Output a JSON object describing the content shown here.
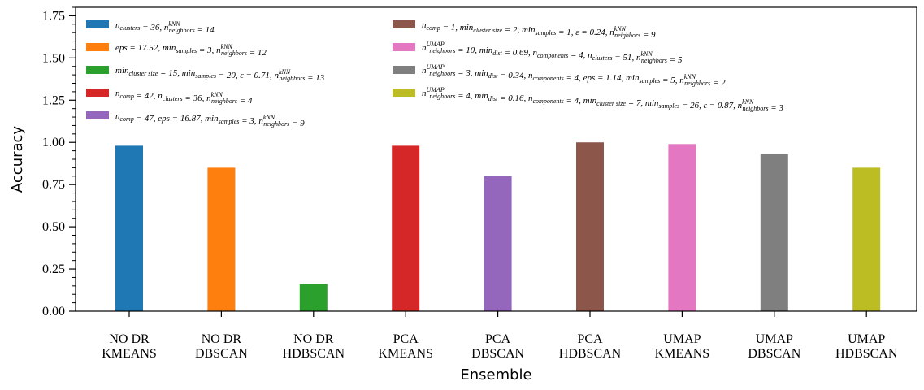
{
  "chart_data": {
    "type": "bar",
    "categories": [
      [
        "NO DR",
        "KMEANS"
      ],
      [
        "NO DR",
        "DBSCAN"
      ],
      [
        "NO DR",
        "HDBSCAN"
      ],
      [
        "PCA",
        "KMEANS"
      ],
      [
        "PCA",
        "DBSCAN"
      ],
      [
        "PCA",
        "HDBSCAN"
      ],
      [
        "UMAP",
        "KMEANS"
      ],
      [
        "UMAP",
        "DBSCAN"
      ],
      [
        "UMAP",
        "HDBSCAN"
      ]
    ],
    "values": [
      0.98,
      0.85,
      0.16,
      0.98,
      0.8,
      1.0,
      0.99,
      0.93,
      0.85
    ],
    "colors": [
      "#1f77b4",
      "#ff7f0e",
      "#2ca02c",
      "#d62728",
      "#9467bd",
      "#8c564b",
      "#e377c2",
      "#7f7f7f",
      "#bcbd22"
    ],
    "legend": [
      "n_clusters = 36,  n_neighbors^kNN = 14",
      "eps = 17.52,  min_samples = 3,  n_neighbors^kNN = 12",
      "min_cluster size = 15,  min_samples = 20,  ε = 0.71,  n_neighbors^kNN = 13",
      "n_comp = 42,  n_clusters = 36,  n_neighbors^kNN = 4",
      "n_comp = 47,  eps = 16.87,  min_samples = 3,  n_neighbors^kNN = 9",
      "n_comp = 1,  min_cluster size = 2,  min_samples = 1,  ε = 0.24,  n_neighbors^kNN = 9",
      "n_neighbors^UMAP = 10,  min_dist = 0.69,  n_components = 4,  n_clusters = 51,  n_neighbors^kNN = 5",
      "n_neighbors^UMAP = 3,  min_dist = 0.34,  n_components = 4,  eps = 1.14,  min_samples = 5,  n_neighbors^kNN = 2",
      "n_neighbors^UMAP = 4,  min_dist = 0.16,  n_components = 4,  min_cluster size = 7,  min_samples = 26,  ε = 0.87,  n_neighbors^kNN = 3"
    ],
    "xlabel": "Ensemble",
    "ylabel": "Accuracy",
    "ylim": [
      0,
      1.8
    ],
    "yticks": [
      "0.00",
      "0.25",
      "0.50",
      "0.75",
      "1.00",
      "1.25",
      "1.50",
      "1.75"
    ],
    "grid": false,
    "legend_position": "top-left, two columns"
  }
}
